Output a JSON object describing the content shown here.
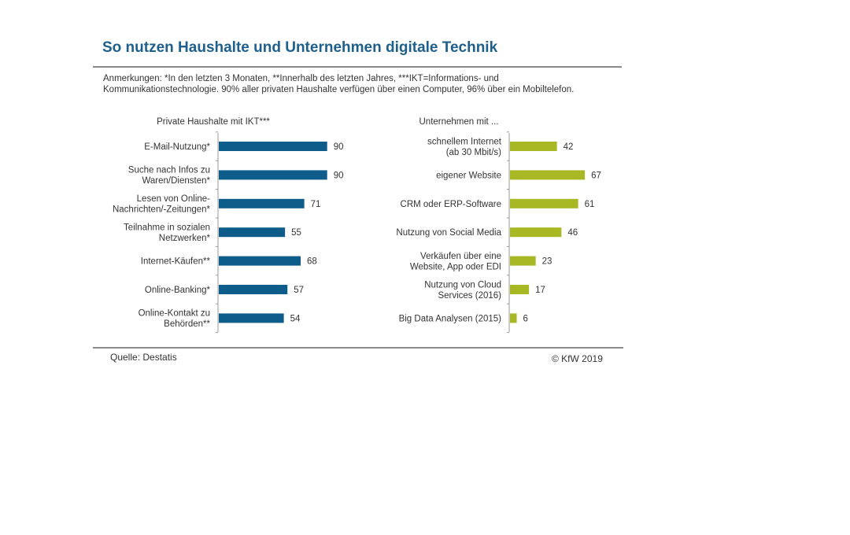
{
  "title": "So nutzen Haushalte und Unternehmen digitale Technik",
  "notes": [
    "Anmerkungen: *In den letzten 3 Monaten, **Innerhalb des letzten Jahres, ***IKT=Informations- und",
    "Kommunikationstechnologie. 90% aller privaten Haushalte verfügen über einen Computer, 96% über ein Mobiltelefon."
  ],
  "source": "Quelle: Destatis",
  "copyright": "© KfW 2019",
  "colors": {
    "households": "#0e5c8a",
    "companies": "#a8b724"
  },
  "chart_data": [
    {
      "type": "bar",
      "orientation": "horizontal",
      "title": "Private Haushalte mit IKT***",
      "categories": [
        [
          "E-Mail-Nutzung*"
        ],
        [
          "Suche nach Infos zu",
          "Waren/Diensten*"
        ],
        [
          "Lesen von Online-",
          "Nachrichten/-Zeitungen*"
        ],
        [
          "Teilnahme  in sozialen",
          "Netzwerken*"
        ],
        [
          "Internet-Käufen**"
        ],
        [
          "Online-Banking*"
        ],
        [
          "Online-Kontakt zu",
          "Behörden**"
        ]
      ],
      "values": [
        90,
        90,
        71,
        55,
        68,
        57,
        54
      ],
      "xlim": [
        0,
        100
      ],
      "grid": false,
      "color": "#0e5c8a"
    },
    {
      "type": "bar",
      "orientation": "horizontal",
      "title": "Unternehmen mit ...",
      "categories": [
        [
          "schnellem Internet",
          "(ab 30 Mbit/s)"
        ],
        [
          "eigener Website"
        ],
        [
          "CRM  oder ERP-Software"
        ],
        [
          "Nutzung von Social Media"
        ],
        [
          "Verkäufen über eine",
          "Website, App oder EDI"
        ],
        [
          "Nutzung von Cloud",
          "Services (2016)"
        ],
        [
          "Big Data Analysen (2015)"
        ]
      ],
      "values": [
        42,
        67,
        61,
        46,
        23,
        17,
        6
      ],
      "xlim": [
        0,
        100
      ],
      "grid": false,
      "color": "#a8b724"
    }
  ]
}
